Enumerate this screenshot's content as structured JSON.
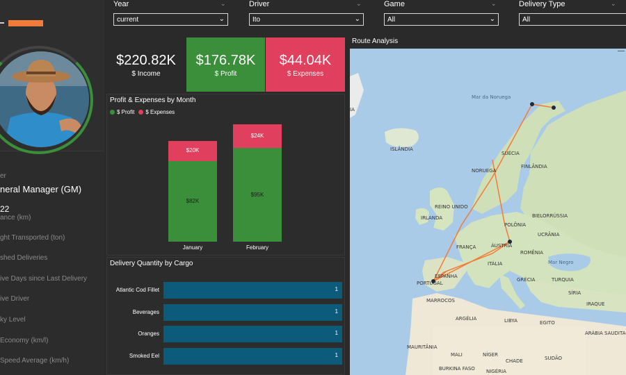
{
  "filters": [
    {
      "label": "Year",
      "value": "current"
    },
    {
      "label": "Driver",
      "value": "Ito"
    },
    {
      "label": "Game",
      "value": "All"
    },
    {
      "label": "Delivery Type",
      "value": "All"
    }
  ],
  "kpis": {
    "income": {
      "value": "$220.82K",
      "label": "$ Income"
    },
    "profit": {
      "value": "$176.78K",
      "label": "$ Profit"
    },
    "expenses": {
      "value": "$44.04K",
      "label": "$ Expenses"
    }
  },
  "driver": {
    "role_label": "er",
    "role": "neral Manager (GM)",
    "distance_value": "22",
    "distance_label": "ance (km)",
    "freight_label": "ght Transported (ton)",
    "deliveries_label": "shed Deliveries",
    "active_days_label": "ive Days since Last Delivery",
    "active_driver_label": "ive Driver",
    "risky_label": "ky Level",
    "economy_label": "Economy (km/l)",
    "speed_label": "Speed Average (km/h)"
  },
  "profit_expenses_chart": {
    "title": "Profit & Expenses by Month",
    "legend": {
      "profit": "$ Profit",
      "expenses": "$ Expenses"
    },
    "colors": {
      "profit": "#3b8f3a",
      "expenses": "#e0405e"
    }
  },
  "cargo_chart": {
    "title": "Delivery Quantity by Cargo",
    "color": "#0d5b7a"
  },
  "map": {
    "title": "Route Analysis",
    "labels": {
      "sea_norway": "Mar da Noruega",
      "islandia": "ISLÂNDIA",
      "suecia": "SUÉCIA",
      "noruega": "NORUEGA",
      "finlandia": "FINLÂNDIA",
      "reino_unido": "REINO UNIDO",
      "irlanda": "IRLANDA",
      "bielorussia": "BIELORRÚSSIA",
      "polonia": "POLÔNIA",
      "ucrania": "UCRÂNIA",
      "franca": "FRANÇA",
      "austria": "ÁUSTRIA",
      "romenia": "ROMÊNIA",
      "mar_negro": "Mar Negro",
      "italia": "ITÁLIA",
      "espanha": "ESPANHA",
      "portugal": "PORTUGAL",
      "grecia": "GRÉCIA",
      "turquia": "TURQUIA",
      "siria": "SÍRIA",
      "iraque": "IRAQUE",
      "marrocos": "MARROCOS",
      "argelia": "ARGÉLIA",
      "libya": "LIBYA",
      "egito": "EGITO",
      "arabia": "ARÁBIA SAUDITA",
      "mauritania": "MAURITÂNIA",
      "mali": "MALI",
      "niger": "NÍGER",
      "chade": "CHADE",
      "sudao": "SUDÃO",
      "burkina": "BURKINA FASO",
      "nigeria": "NIGÉRIA",
      "ia": "IA"
    }
  },
  "chart_data": [
    {
      "type": "bar",
      "title": "Profit & Expenses by Month",
      "categories": [
        "January",
        "February"
      ],
      "series": [
        {
          "name": "$ Profit",
          "values": [
            82,
            95
          ],
          "labels": [
            "$82K",
            "$95K"
          ]
        },
        {
          "name": "$ Expenses",
          "values": [
            20,
            24
          ],
          "labels": [
            "$20K",
            "$24K"
          ]
        }
      ],
      "stacked": true,
      "legend": "top-left"
    },
    {
      "type": "bar",
      "orientation": "horizontal",
      "title": "Delivery Quantity by Cargo",
      "categories": [
        "Atlantic Cod Fillet",
        "Beverages",
        "Oranges",
        "Smoked Eel"
      ],
      "values": [
        1,
        1,
        1,
        1
      ]
    }
  ]
}
